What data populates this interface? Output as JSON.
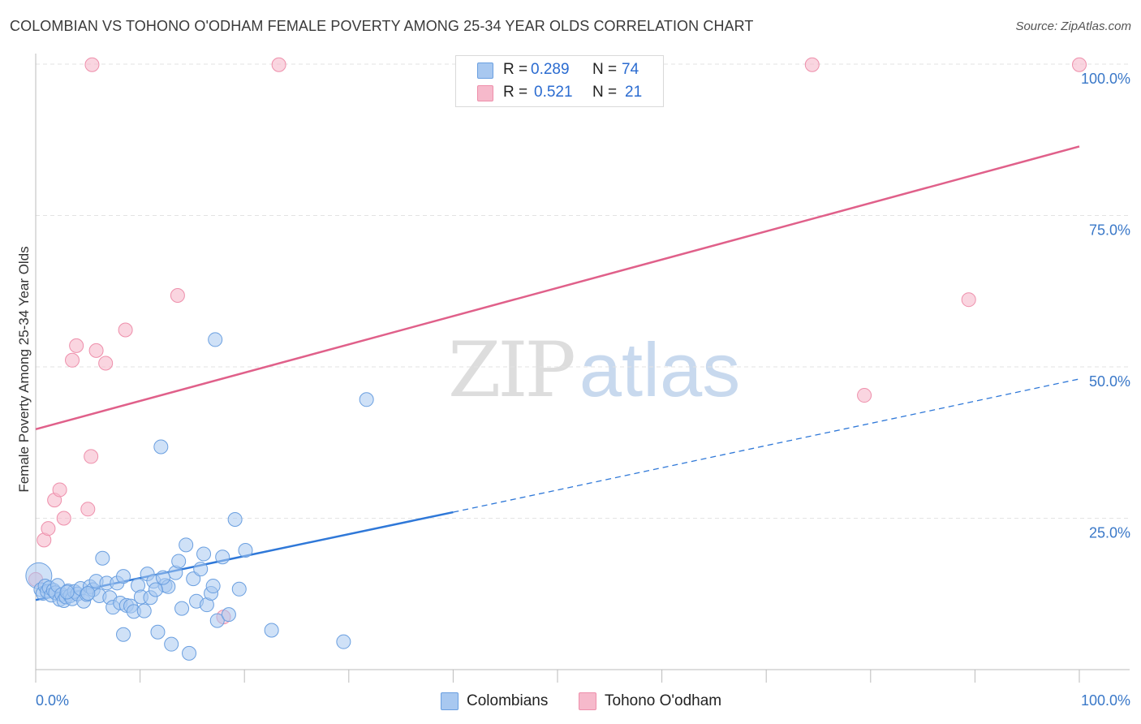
{
  "title": "COLOMBIAN VS TOHONO O'ODHAM FEMALE POVERTY AMONG 25-34 YEAR OLDS CORRELATION CHART",
  "source": "Source: ZipAtlas.com",
  "watermark": {
    "zip": "ZIP",
    "atlas": "atlas"
  },
  "legend": {
    "rows": [
      {
        "r_label": "R =",
        "r_value": "0.289",
        "n_label": "N =",
        "n_value": "74",
        "color": "#a8c8f0"
      },
      {
        "r_label": "R =",
        "r_value": "0.521",
        "n_label": "N =",
        "n_value": "21",
        "color": "#f6b9cb"
      }
    ]
  },
  "colors": {
    "blue_fill": "#a8c8f0",
    "blue_stroke": "#6a9fe0",
    "blue_line": "#2f78d8",
    "pink_fill": "#f6b9cb",
    "pink_stroke": "#ee8fab",
    "pink_line": "#e0608a",
    "tick_label": "#3a78c8"
  },
  "chart_data": {
    "type": "scatter",
    "title": "COLOMBIAN VS TOHONO O'ODHAM FEMALE POVERTY AMONG 25-34 YEAR OLDS CORRELATION CHART",
    "xlabel": "",
    "ylabel": "Female Poverty Among 25-34 Year Olds",
    "xlim": [
      0,
      100
    ],
    "ylim": [
      0,
      100
    ],
    "x_tick_labels": [
      "0.0%",
      "100.0%"
    ],
    "y_ticks": [
      25,
      50,
      75,
      100
    ],
    "y_tick_labels": [
      "25.0%",
      "50.0%",
      "75.0%",
      "100.0%"
    ],
    "grid": true,
    "legend_position": "bottom-center",
    "series": [
      {
        "name": "Colombians",
        "color": "#a8c8f0",
        "trend": {
          "x0": 0,
          "y0": 11.5,
          "x1": 40,
          "y1": 26.0,
          "dashed_to_x": 100,
          "dashed_to_y": 48.0
        },
        "points": [
          [
            0.3,
            15.5
          ],
          [
            0.5,
            13.2
          ],
          [
            0.7,
            12.6
          ],
          [
            0.9,
            13.8
          ],
          [
            1.1,
            12.9
          ],
          [
            1.3,
            13.5
          ],
          [
            1.5,
            12.3
          ],
          [
            1.7,
            13.1
          ],
          [
            1.9,
            12.7
          ],
          [
            2.1,
            13.9
          ],
          [
            2.3,
            11.6
          ],
          [
            2.5,
            12.4
          ],
          [
            2.7,
            11.4
          ],
          [
            2.9,
            12.0
          ],
          [
            3.1,
            13.0
          ],
          [
            3.3,
            12.2
          ],
          [
            3.5,
            11.7
          ],
          [
            3.7,
            12.9
          ],
          [
            4.0,
            12.5
          ],
          [
            4.3,
            13.4
          ],
          [
            4.6,
            11.3
          ],
          [
            4.9,
            12.4
          ],
          [
            5.2,
            13.7
          ],
          [
            5.5,
            13.2
          ],
          [
            5.8,
            14.6
          ],
          [
            6.1,
            12.2
          ],
          [
            6.4,
            18.4
          ],
          [
            6.8,
            14.3
          ],
          [
            7.1,
            11.9
          ],
          [
            7.4,
            10.3
          ],
          [
            7.8,
            14.3
          ],
          [
            8.1,
            11.0
          ],
          [
            8.4,
            5.8
          ],
          [
            8.7,
            10.6
          ],
          [
            9.1,
            10.5
          ],
          [
            9.4,
            9.6
          ],
          [
            9.8,
            13.9
          ],
          [
            10.1,
            12.0
          ],
          [
            10.4,
            9.7
          ],
          [
            10.7,
            15.8
          ],
          [
            11.0,
            11.9
          ],
          [
            11.3,
            14.6
          ],
          [
            11.7,
            6.2
          ],
          [
            12.0,
            36.8
          ],
          [
            12.4,
            13.9
          ],
          [
            12.7,
            13.7
          ],
          [
            13.0,
            4.2
          ],
          [
            13.4,
            16.0
          ],
          [
            13.7,
            17.9
          ],
          [
            14.0,
            10.1
          ],
          [
            14.4,
            20.6
          ],
          [
            14.7,
            2.7
          ],
          [
            15.1,
            15.0
          ],
          [
            15.4,
            11.3
          ],
          [
            15.8,
            16.6
          ],
          [
            16.1,
            19.1
          ],
          [
            16.4,
            10.7
          ],
          [
            16.8,
            12.6
          ],
          [
            17.4,
            8.1
          ],
          [
            17.9,
            18.6
          ],
          [
            18.5,
            9.1
          ],
          [
            19.1,
            24.8
          ],
          [
            19.5,
            13.3
          ],
          [
            20.1,
            19.7
          ],
          [
            17.0,
            13.8
          ],
          [
            8.4,
            15.4
          ],
          [
            5.0,
            12.6
          ],
          [
            3.0,
            12.8
          ],
          [
            12.2,
            15.2
          ],
          [
            11.5,
            13.2
          ],
          [
            17.2,
            54.5
          ],
          [
            31.7,
            44.6
          ],
          [
            22.6,
            6.5
          ],
          [
            29.5,
            4.6
          ]
        ]
      },
      {
        "name": "Tohono O'odham",
        "color": "#f6b9cb",
        "trend": {
          "x0": 0,
          "y0": 39.7,
          "x1": 100,
          "y1": 86.4
        },
        "points": [
          [
            0.0,
            14.9
          ],
          [
            0.8,
            21.4
          ],
          [
            1.2,
            23.3
          ],
          [
            1.8,
            28.0
          ],
          [
            2.3,
            29.7
          ],
          [
            2.7,
            25.0
          ],
          [
            3.5,
            51.1
          ],
          [
            3.9,
            53.5
          ],
          [
            5.0,
            26.5
          ],
          [
            5.3,
            35.2
          ],
          [
            5.4,
            99.9
          ],
          [
            5.8,
            52.7
          ],
          [
            6.7,
            50.6
          ],
          [
            8.6,
            56.1
          ],
          [
            13.6,
            61.8
          ],
          [
            18.0,
            8.7
          ],
          [
            23.3,
            99.9
          ],
          [
            74.4,
            99.9
          ],
          [
            79.4,
            45.3
          ],
          [
            89.4,
            61.1
          ],
          [
            100.0,
            99.9
          ]
        ]
      }
    ]
  }
}
